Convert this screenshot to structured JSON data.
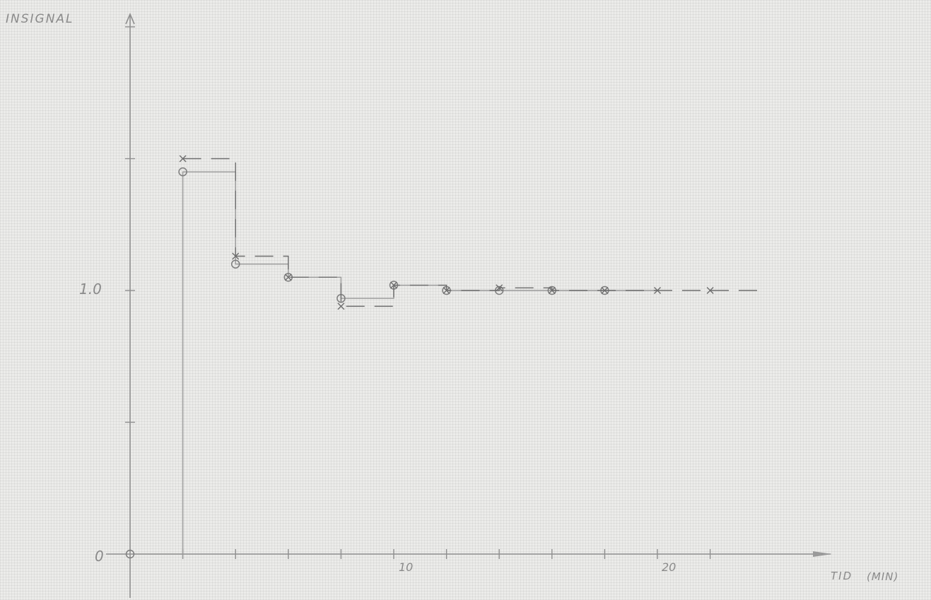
{
  "chart_data": {
    "type": "line",
    "ylabel": "INSIGNAL",
    "xlabel": "TID",
    "xunit": "(MIN)",
    "x_tick_labels": [
      "10",
      "20"
    ],
    "y_tick_labels": [
      "0",
      "1.0"
    ],
    "xlim": [
      0,
      25
    ],
    "ylim": [
      0,
      2.2
    ],
    "x_ticks": [
      2,
      4,
      6,
      8,
      10,
      12,
      14,
      16,
      18,
      20,
      22
    ],
    "y_ticks": [
      0.5,
      1.0,
      1.5,
      2.0
    ],
    "grid": false,
    "step": true,
    "series": [
      {
        "marker": "circle",
        "x": [
          0,
          2,
          4,
          6,
          8,
          10,
          12,
          14,
          16,
          18
        ],
        "y": [
          0,
          1.45,
          1.1,
          1.05,
          0.97,
          1.02,
          1.0,
          1.0,
          1.0,
          1.0
        ]
      },
      {
        "marker": "cross",
        "x": [
          2,
          4,
          6,
          8,
          10,
          12,
          14,
          16,
          18,
          20,
          22
        ],
        "y": [
          1.5,
          1.13,
          1.05,
          0.94,
          1.02,
          1.0,
          1.01,
          1.0,
          1.0,
          1.0,
          1.0
        ]
      }
    ]
  }
}
